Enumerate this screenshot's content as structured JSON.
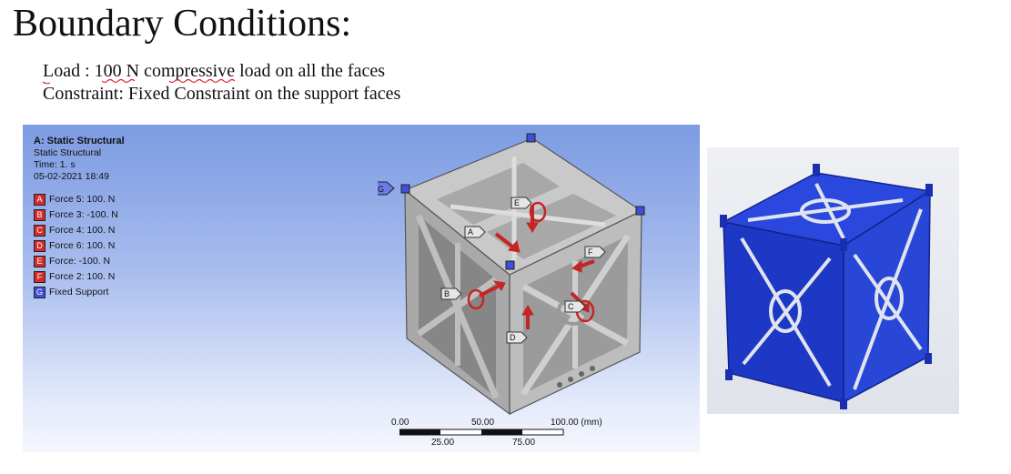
{
  "slide": {
    "title": "Boundary Conditions:",
    "load_line": "Load : 100 N compressive load on all the faces",
    "constraint_line": "Constraint: Fixed Constraint on the support  faces"
  },
  "analysis": {
    "title": "A: Static Structural",
    "type": "Static Structural",
    "time": "Time: 1. s",
    "date": "05-02-2021 18:49",
    "items": [
      {
        "letter": "A",
        "label": "Force 5: 100. N",
        "color": "#d42a2a"
      },
      {
        "letter": "B",
        "label": "Force 3: -100. N",
        "color": "#d42a2a"
      },
      {
        "letter": "C",
        "label": "Force 4: 100. N",
        "color": "#d42a2a"
      },
      {
        "letter": "D",
        "label": "Force 6: 100. N",
        "color": "#d42a2a"
      },
      {
        "letter": "E",
        "label": "Force: -100. N",
        "color": "#d42a2a"
      },
      {
        "letter": "F",
        "label": "Force 2: 100. N",
        "color": "#d42a2a"
      },
      {
        "letter": "G",
        "label": "Fixed Support",
        "color": "#3f4fd6"
      }
    ]
  },
  "scale_bar": {
    "labels_top": [
      "0.00",
      "50.00",
      "100.00 (mm)"
    ],
    "labels_bottom": [
      "25.00",
      "75.00"
    ]
  },
  "colors": {
    "force": "#d42a2a",
    "support": "#3f4fd6",
    "model_gray": "#b9b9b9",
    "render_blue": "#1f3fd0"
  },
  "icons": [
    "force-arrow-icon",
    "fixed-support-icon",
    "callout-label-icon"
  ]
}
